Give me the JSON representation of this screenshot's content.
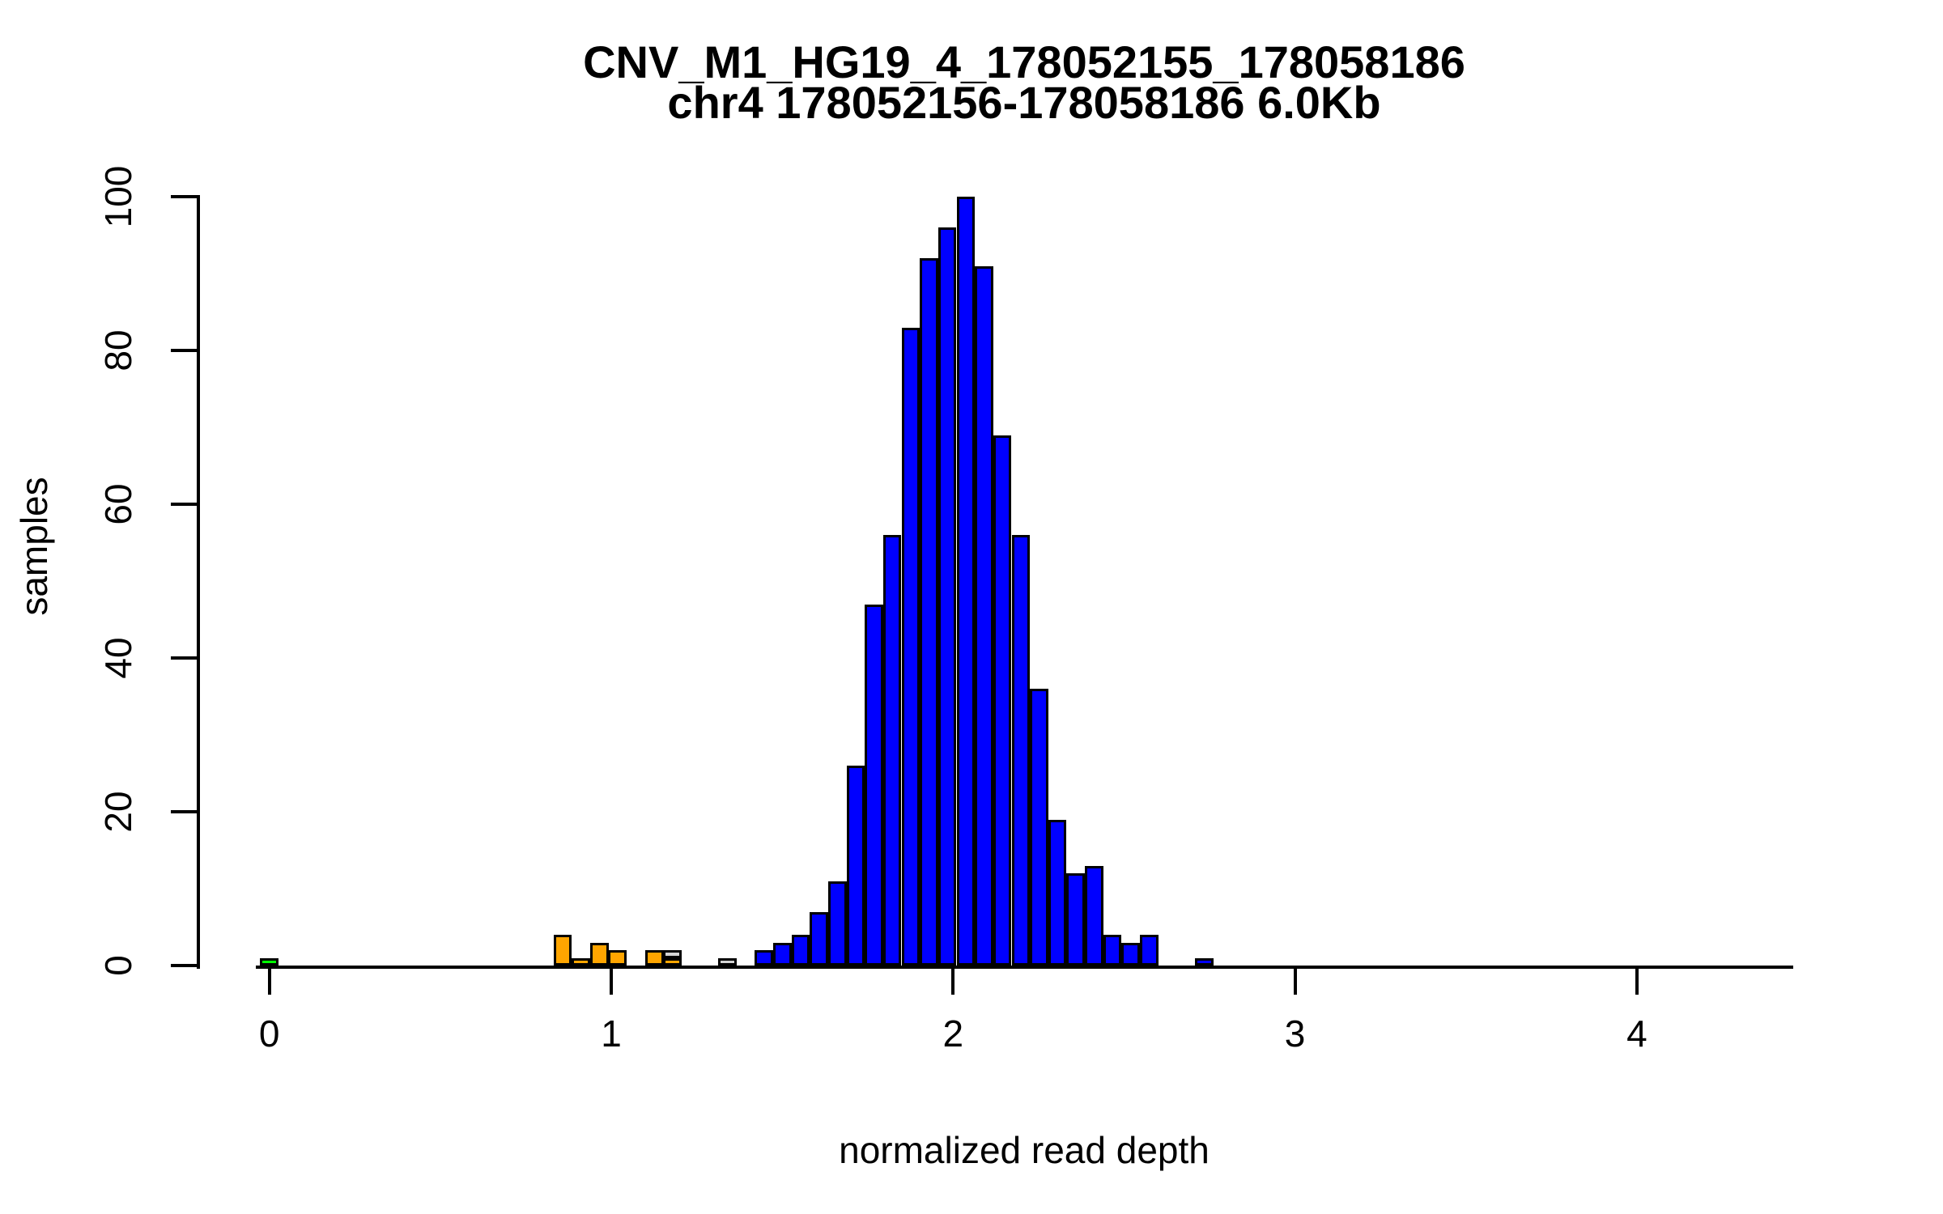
{
  "chart_data": {
    "type": "bar",
    "title": "CNV_M1_HG19_4_178052155_178058186",
    "subtitle": "chr4 178052156-178058186 6.0Kb",
    "xlabel": "normalized read depth",
    "ylabel": "samples",
    "xlim": [
      -0.05,
      4.45
    ],
    "ylim": [
      0,
      100
    ],
    "x_ticks": [
      0,
      1,
      2,
      3,
      4
    ],
    "y_ticks": [
      0,
      20,
      40,
      60,
      80,
      100
    ],
    "grid": false,
    "legend": "none",
    "bin_width": 0.0536,
    "bar_colors": {
      "blue": "#0000FF",
      "orange": "#FFA500",
      "green": "#00FF00",
      "gray": "#D3D3D3"
    },
    "bars": [
      {
        "x": 0.0,
        "count": 1,
        "color": "green"
      },
      {
        "x": 0.858,
        "count": 4,
        "color": "orange"
      },
      {
        "x": 0.911,
        "count": 1,
        "color": "orange"
      },
      {
        "x": 0.965,
        "count": 3,
        "color": "orange"
      },
      {
        "x": 1.018,
        "count": 2,
        "color": "orange"
      },
      {
        "x": 1.126,
        "count": 2,
        "color": "orange"
      },
      {
        "x": 1.179,
        "count": 2,
        "color": "stacked",
        "segments": [
          {
            "count": 1,
            "color": "orange"
          },
          {
            "count": 1,
            "color": "gray"
          }
        ]
      },
      {
        "x": 1.34,
        "count": 1,
        "color": "gray"
      },
      {
        "x": 1.447,
        "count": 2,
        "color": "blue"
      },
      {
        "x": 1.501,
        "count": 3,
        "color": "blue"
      },
      {
        "x": 1.554,
        "count": 4,
        "color": "blue"
      },
      {
        "x": 1.608,
        "count": 7,
        "color": "blue"
      },
      {
        "x": 1.662,
        "count": 11,
        "color": "blue"
      },
      {
        "x": 1.715,
        "count": 26,
        "color": "blue"
      },
      {
        "x": 1.769,
        "count": 47,
        "color": "blue"
      },
      {
        "x": 1.822,
        "count": 56,
        "color": "blue"
      },
      {
        "x": 1.876,
        "count": 83,
        "color": "blue"
      },
      {
        "x": 1.93,
        "count": 92,
        "color": "blue"
      },
      {
        "x": 1.983,
        "count": 96,
        "color": "blue"
      },
      {
        "x": 2.037,
        "count": 100,
        "color": "blue"
      },
      {
        "x": 2.09,
        "count": 91,
        "color": "blue"
      },
      {
        "x": 2.144,
        "count": 69,
        "color": "blue"
      },
      {
        "x": 2.198,
        "count": 56,
        "color": "blue"
      },
      {
        "x": 2.251,
        "count": 36,
        "color": "blue"
      },
      {
        "x": 2.305,
        "count": 19,
        "color": "blue"
      },
      {
        "x": 2.358,
        "count": 12,
        "color": "blue"
      },
      {
        "x": 2.412,
        "count": 13,
        "color": "blue"
      },
      {
        "x": 2.466,
        "count": 4,
        "color": "blue"
      },
      {
        "x": 2.519,
        "count": 3,
        "color": "blue"
      },
      {
        "x": 2.573,
        "count": 4,
        "color": "blue"
      },
      {
        "x": 2.734,
        "count": 1,
        "color": "blue"
      }
    ]
  }
}
